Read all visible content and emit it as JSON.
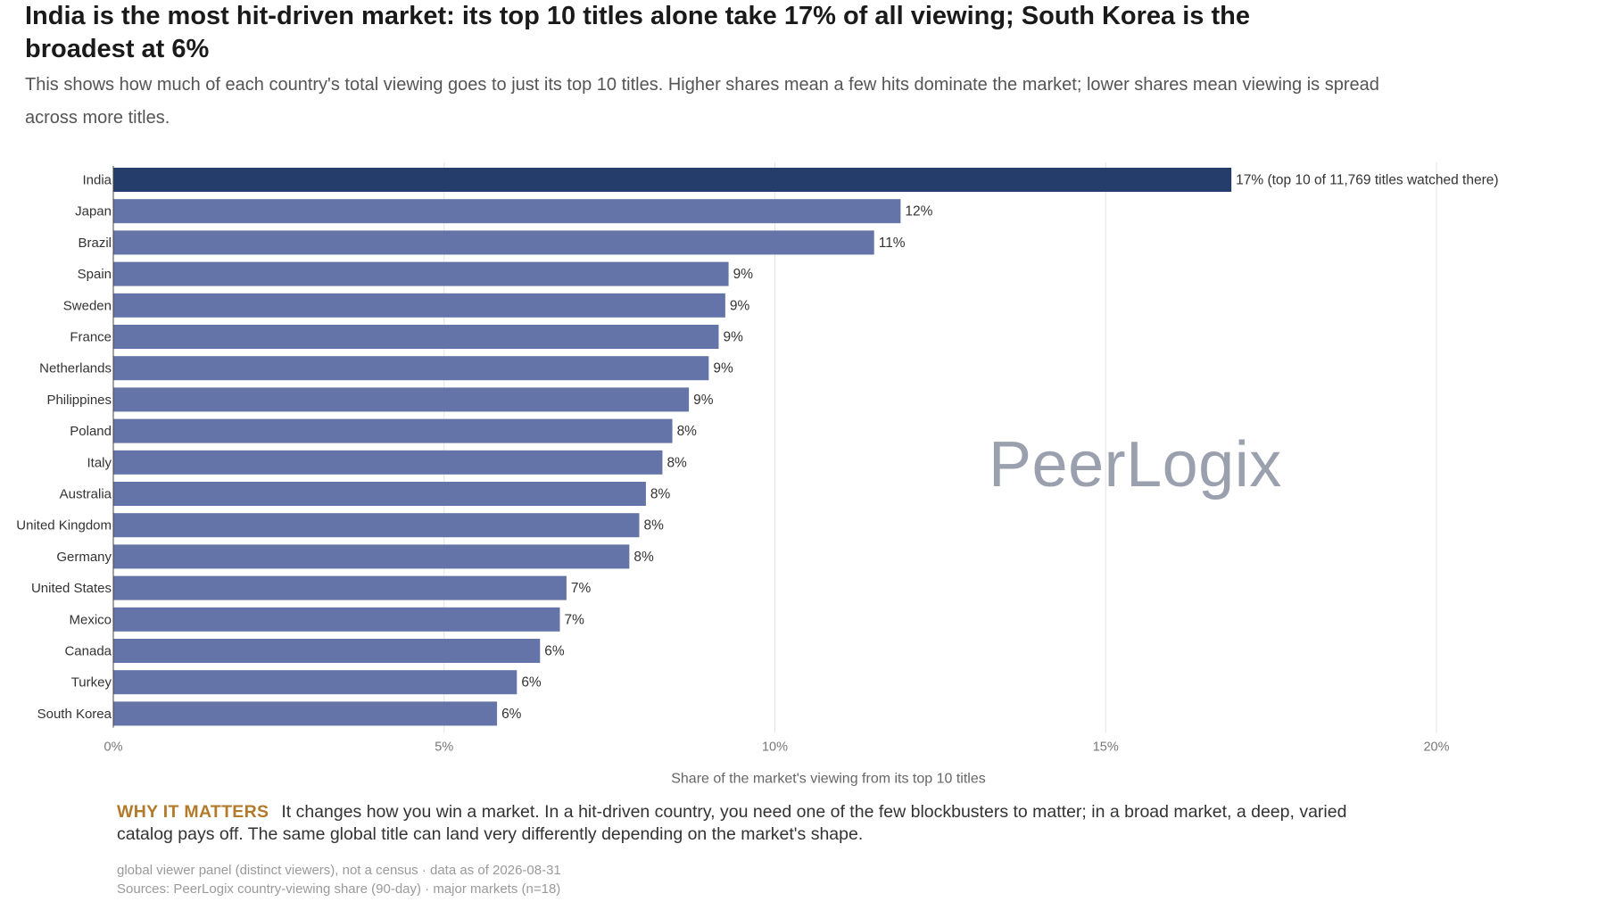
{
  "header": {
    "title": "India is the most hit-driven market: its top 10 titles alone take 17% of all viewing; South Korea is the broadest at 6%",
    "subtitle": "This shows how much of each country's total viewing goes to just its top 10 titles. Higher shares mean a few hits dominate the market; lower shares mean viewing is spread across more titles."
  },
  "watermark": "PeerLogix",
  "why_it_matters": {
    "label": "WHY IT MATTERS",
    "text": "It changes how you win a market. In a hit-driven country, you need one of the few blockbusters to matter; in a broad market, a deep, varied catalog pays off. The same global title can land very differently depending on the market's shape."
  },
  "footnotes": {
    "line1": "global viewer panel (distinct viewers), not a census · data as of 2026-08-31",
    "line2": "Sources: PeerLogix country-viewing share (90-day) · major markets (n=18)"
  },
  "chart_data": {
    "type": "bar",
    "orientation": "horizontal",
    "categories": [
      "India",
      "Japan",
      "Brazil",
      "Spain",
      "Sweden",
      "France",
      "Netherlands",
      "Philippines",
      "Poland",
      "Italy",
      "Australia",
      "United Kingdom",
      "Germany",
      "United States",
      "Mexico",
      "Canada",
      "Turkey",
      "South Korea"
    ],
    "values": [
      16.9,
      11.9,
      11.5,
      9.3,
      9.25,
      9.15,
      9.0,
      8.7,
      8.45,
      8.3,
      8.05,
      7.95,
      7.8,
      6.85,
      6.75,
      6.45,
      6.1,
      5.8
    ],
    "value_labels": [
      "17%",
      "12%",
      "11%",
      "9%",
      "9%",
      "9%",
      "9%",
      "9%",
      "8%",
      "8%",
      "8%",
      "8%",
      "8%",
      "7%",
      "7%",
      "6%",
      "6%",
      "6%"
    ],
    "highlight_annotation": "(top 10 of 11,769 titles watched there)",
    "highlight_index": 0,
    "xlabel": "Share of the market's viewing from its top 10 titles",
    "ylabel": "",
    "xlim": [
      0,
      20
    ],
    "x_ticks": [
      0,
      5,
      10,
      15,
      20
    ],
    "x_tick_labels": [
      "0%",
      "5%",
      "10%",
      "15%",
      "20%"
    ],
    "grid": "vertical",
    "colors": {
      "highlight": "#243d6a",
      "bar": "#6473a8",
      "grid": "#e4e4e4"
    }
  }
}
